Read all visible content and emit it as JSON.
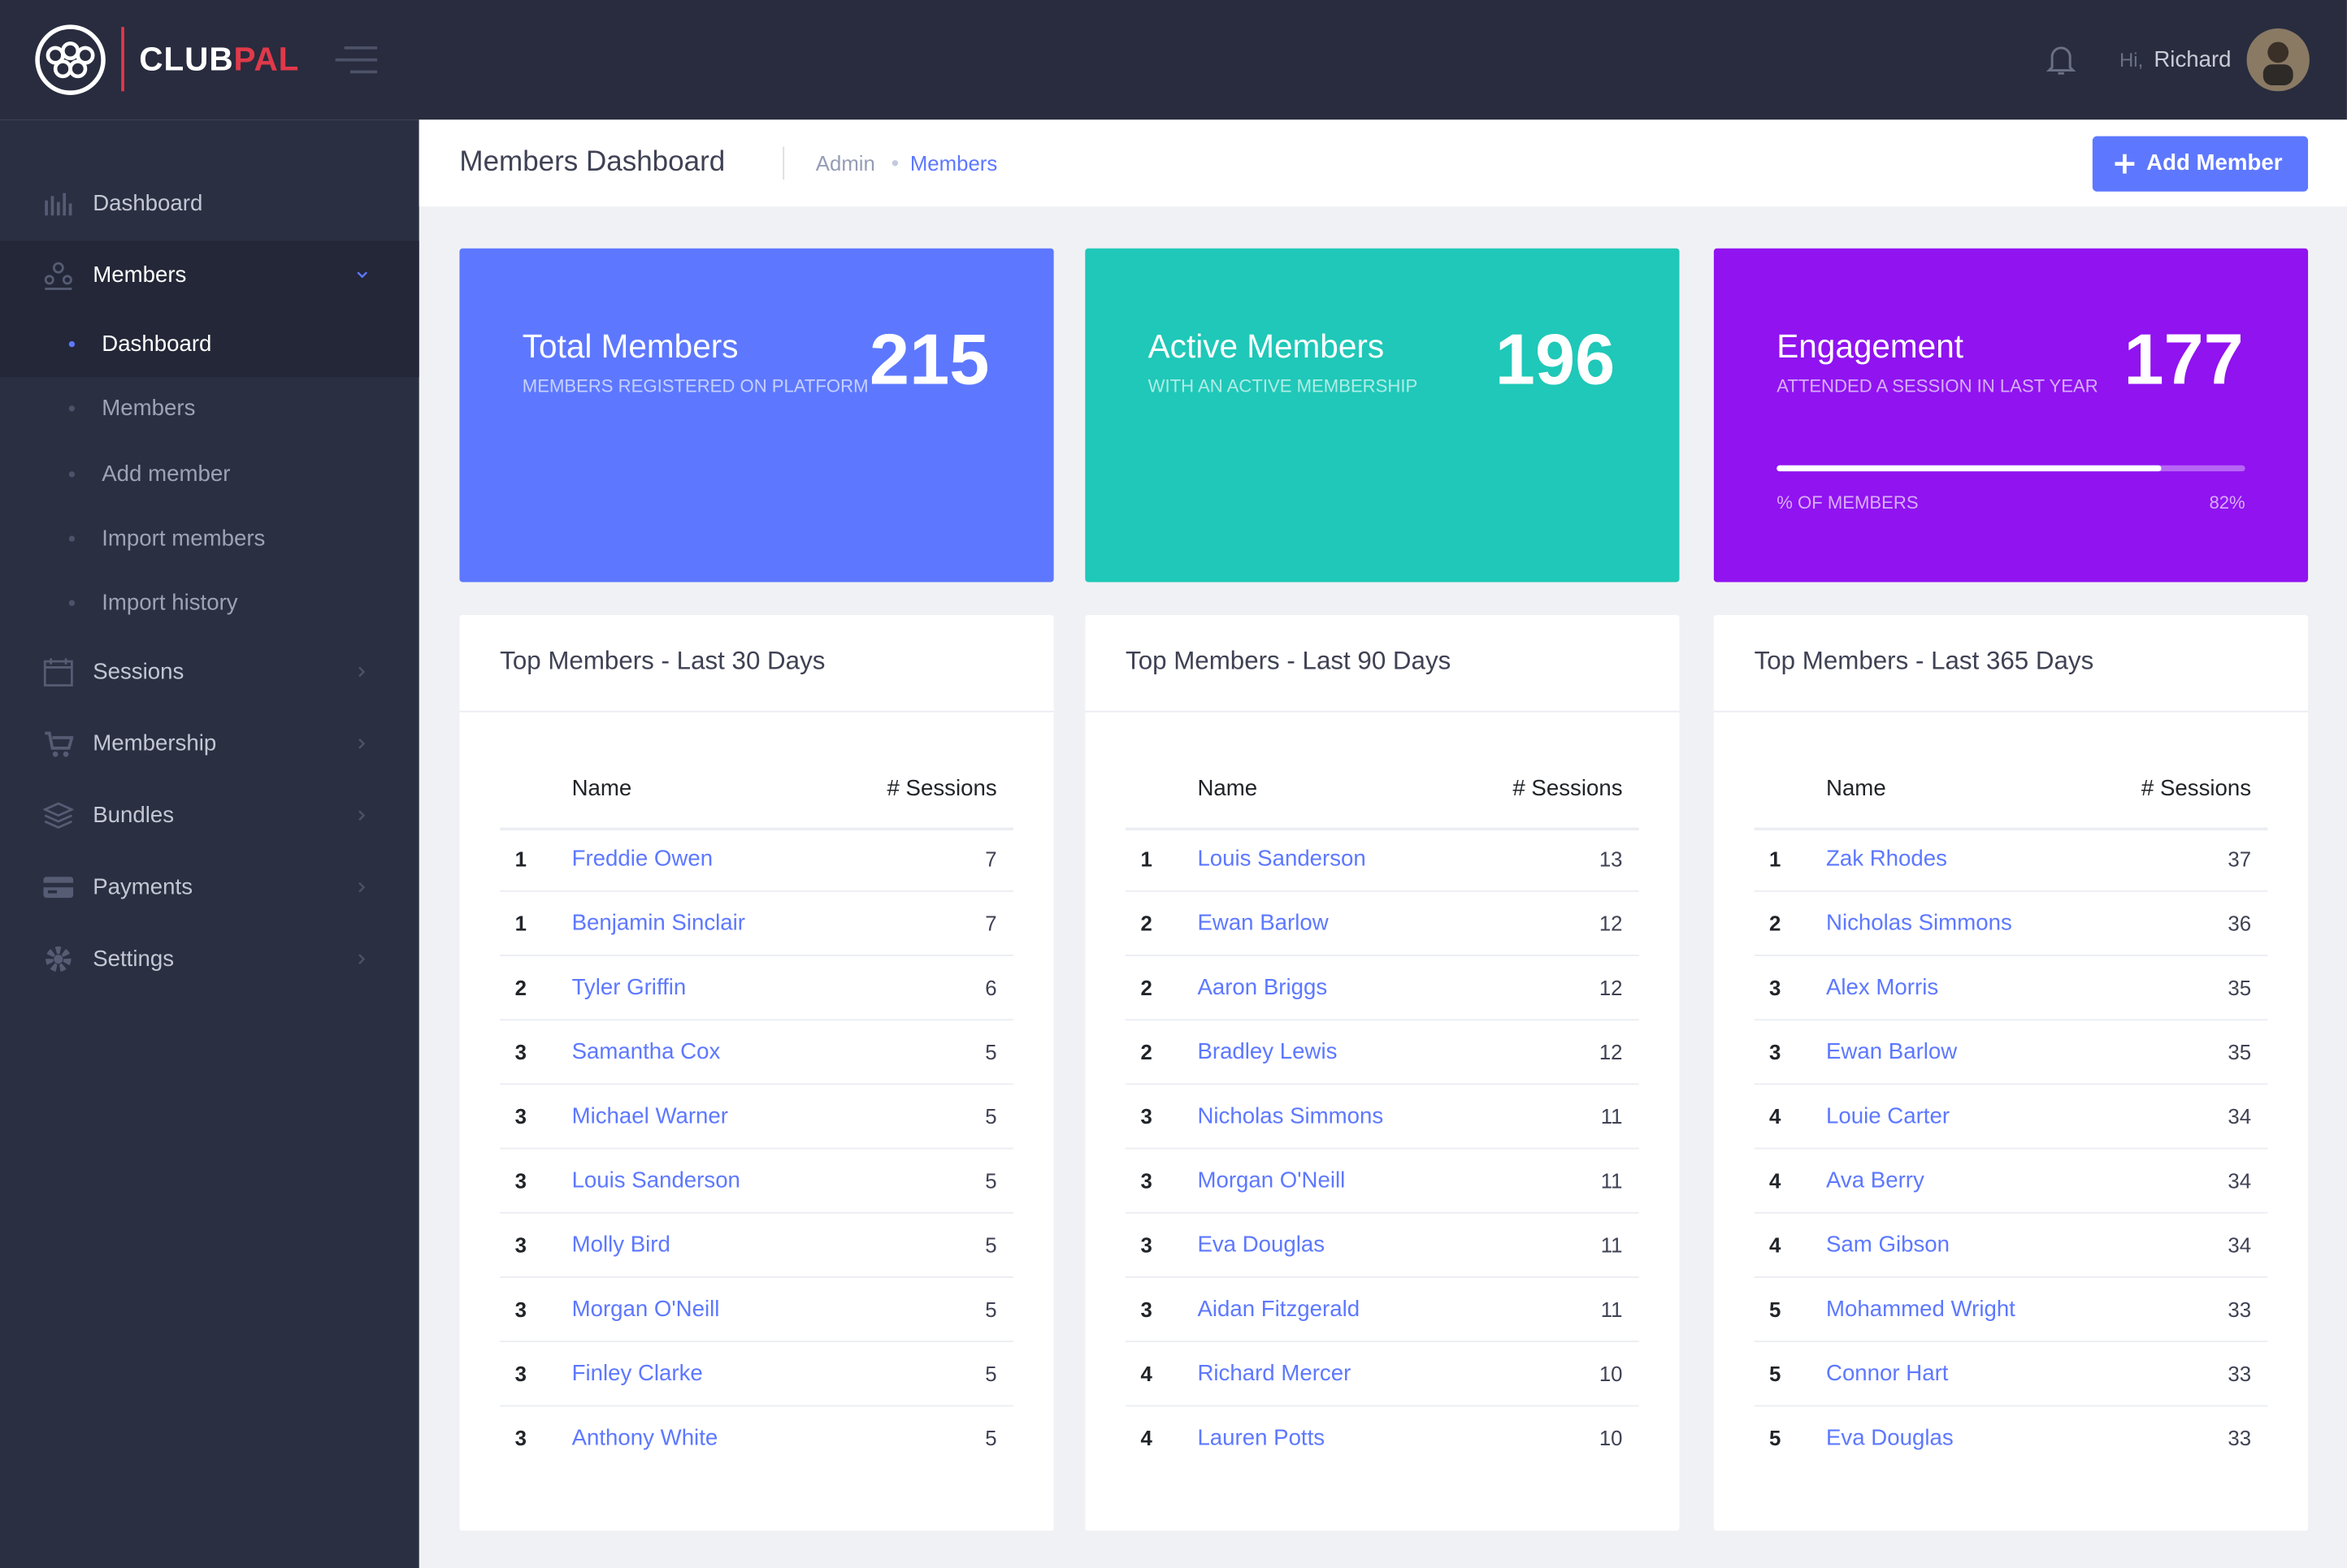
{
  "brand": {
    "part1": "CLUB",
    "part2": "PAL"
  },
  "header": {
    "greeting": "Hi,",
    "user": "Richard"
  },
  "sidebar": {
    "items": [
      {
        "label": "Dashboard"
      },
      {
        "label": "Members",
        "children": [
          "Dashboard",
          "Members",
          "Add member",
          "Import members",
          "Import history"
        ]
      },
      {
        "label": "Sessions"
      },
      {
        "label": "Membership"
      },
      {
        "label": "Bundles"
      },
      {
        "label": "Payments"
      },
      {
        "label": "Settings"
      }
    ]
  },
  "page": {
    "title": "Members Dashboard",
    "breadcrumb": [
      "Admin",
      "Members"
    ],
    "action": "Add Member"
  },
  "stats": [
    {
      "title": "Total Members",
      "subtitle": "MEMBERS REGISTERED ON PLATFORM",
      "value": 215
    },
    {
      "title": "Active Members",
      "subtitle": "WITH AN ACTIVE MEMBERSHIP",
      "value": 196
    },
    {
      "title": "Engagement",
      "subtitle": "ATTENDED A SESSION IN LAST YEAR",
      "value": 177,
      "progress": {
        "label": "% OF MEMBERS",
        "value": 82,
        "value_label": "82%"
      }
    }
  ],
  "tables": [
    {
      "title": "Top Members - Last 30 Days",
      "headers": [
        "Name",
        "# Sessions"
      ],
      "rows": [
        [
          1,
          "Freddie Owen",
          7
        ],
        [
          1,
          "Benjamin Sinclair",
          7
        ],
        [
          2,
          "Tyler Griffin",
          6
        ],
        [
          3,
          "Samantha Cox",
          5
        ],
        [
          3,
          "Michael Warner",
          5
        ],
        [
          3,
          "Louis Sanderson",
          5
        ],
        [
          3,
          "Molly Bird",
          5
        ],
        [
          3,
          "Morgan O'Neill",
          5
        ],
        [
          3,
          "Finley Clarke",
          5
        ],
        [
          3,
          "Anthony White",
          5
        ]
      ]
    },
    {
      "title": "Top Members - Last 90 Days",
      "headers": [
        "Name",
        "# Sessions"
      ],
      "rows": [
        [
          1,
          "Louis Sanderson",
          13
        ],
        [
          2,
          "Ewan Barlow",
          12
        ],
        [
          2,
          "Aaron Briggs",
          12
        ],
        [
          2,
          "Bradley Lewis",
          12
        ],
        [
          3,
          "Nicholas Simmons",
          11
        ],
        [
          3,
          "Morgan O'Neill",
          11
        ],
        [
          3,
          "Eva Douglas",
          11
        ],
        [
          3,
          "Aidan Fitzgerald",
          11
        ],
        [
          4,
          "Richard Mercer",
          10
        ],
        [
          4,
          "Lauren Potts",
          10
        ]
      ]
    },
    {
      "title": "Top Members - Last 365 Days",
      "headers": [
        "Name",
        "# Sessions"
      ],
      "rows": [
        [
          1,
          "Zak Rhodes",
          37
        ],
        [
          2,
          "Nicholas Simmons",
          36
        ],
        [
          3,
          "Alex Morris",
          35
        ],
        [
          3,
          "Ewan Barlow",
          35
        ],
        [
          4,
          "Louie Carter",
          34
        ],
        [
          4,
          "Ava Berry",
          34
        ],
        [
          4,
          "Sam Gibson",
          34
        ],
        [
          5,
          "Mohammed Wright",
          33
        ],
        [
          5,
          "Connor Hart",
          33
        ],
        [
          5,
          "Eva Douglas",
          33
        ]
      ]
    }
  ]
}
